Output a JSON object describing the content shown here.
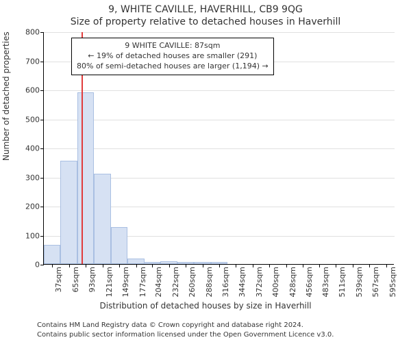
{
  "titles": {
    "line1": "9, WHITE CAVILLE, HAVERHILL, CB9 9QG",
    "line2": "Size of property relative to detached houses in Haverhill"
  },
  "axes": {
    "ylabel": "Number of detached properties",
    "xlabel": "Distribution of detached houses by size in Haverhill"
  },
  "chart": {
    "type": "histogram",
    "background_color": "#ffffff",
    "grid_color": "#e0e0e0",
    "axis_color": "#000000",
    "bar_fill": "#d6e1f3",
    "bar_border": "#a9bfe2",
    "marker_color": "#e13b3b",
    "ylim": [
      0,
      800
    ],
    "yticks": [
      0,
      100,
      200,
      300,
      400,
      500,
      600,
      700,
      800
    ],
    "x_range_sqm": [
      23,
      609
    ],
    "xticks_sqm": [
      37,
      65,
      93,
      121,
      149,
      177,
      204,
      232,
      260,
      288,
      316,
      344,
      372,
      400,
      428,
      456,
      483,
      511,
      539,
      567,
      595
    ],
    "xtick_labels": [
      "37sqm",
      "65sqm",
      "93sqm",
      "121sqm",
      "149sqm",
      "177sqm",
      "204sqm",
      "232sqm",
      "260sqm",
      "288sqm",
      "316sqm",
      "344sqm",
      "372sqm",
      "400sqm",
      "428sqm",
      "456sqm",
      "483sqm",
      "511sqm",
      "539sqm",
      "567sqm",
      "595sqm"
    ],
    "bin_width_sqm": 28,
    "bins": [
      {
        "start_sqm": 23,
        "count": 65
      },
      {
        "start_sqm": 51,
        "count": 356
      },
      {
        "start_sqm": 79,
        "count": 590
      },
      {
        "start_sqm": 107,
        "count": 310
      },
      {
        "start_sqm": 135,
        "count": 126
      },
      {
        "start_sqm": 163,
        "count": 18
      },
      {
        "start_sqm": 190,
        "count": 8
      },
      {
        "start_sqm": 218,
        "count": 10
      },
      {
        "start_sqm": 246,
        "count": 8
      },
      {
        "start_sqm": 274,
        "count": 8
      },
      {
        "start_sqm": 302,
        "count": 8
      }
    ],
    "marker_value_sqm": 87
  },
  "infobox": {
    "line1": "9 WHITE CAVILLE: 87sqm",
    "line2": "← 19% of detached houses are smaller (291)",
    "line3": "80% of semi-detached houses are larger (1,194) →",
    "border_color": "#000000",
    "background_color": "#ffffff",
    "font_size": 11
  },
  "footer": {
    "line1": "Contains HM Land Registry data © Crown copyright and database right 2024.",
    "line2": "Contains public sector information licensed under the Open Government Licence v3.0.",
    "font_size": 10,
    "color": "#333333"
  }
}
